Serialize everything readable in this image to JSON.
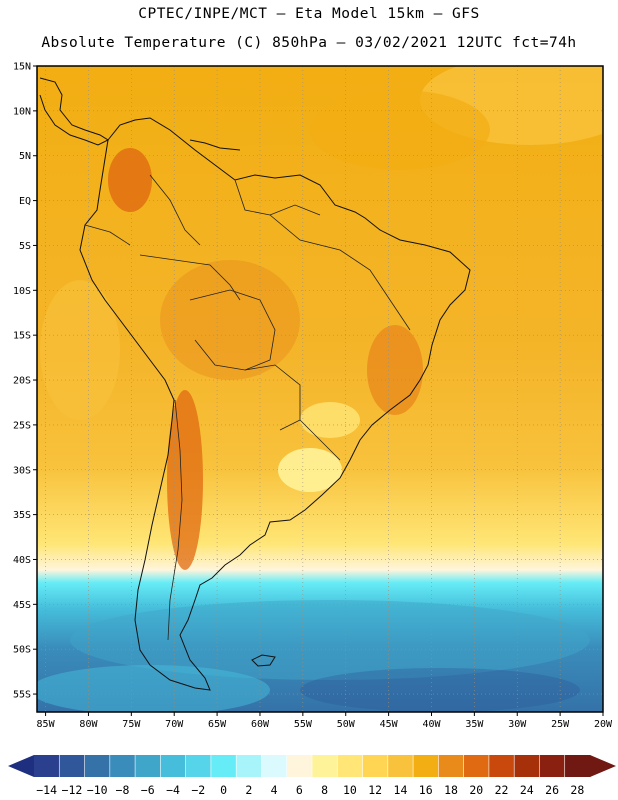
{
  "header": {
    "line1": "CPTEC/INPE/MCT —  Eta Model 15km — GFS",
    "line2": "Absolute Temperature (C) 850hPa — 03/02/2021 12UTC fct=74h"
  },
  "map": {
    "lat_ticks": [
      "15N",
      "10N",
      "5N",
      "EQ",
      "5S",
      "10S",
      "15S",
      "20S",
      "25S",
      "30S",
      "35S",
      "40S",
      "45S",
      "50S",
      "55S"
    ],
    "lon_ticks": [
      "85W",
      "80W",
      "75W",
      "70W",
      "65W",
      "60W",
      "55W",
      "50W",
      "45W",
      "40W",
      "35W",
      "30W",
      "25W",
      "20W"
    ],
    "lat_range": [
      15,
      -57
    ],
    "lon_range": [
      -86,
      -20
    ]
  },
  "colorbar": {
    "labels": [
      "-14",
      "-12",
      "-10",
      "-8",
      "-6",
      "-4",
      "-2",
      "0",
      "2",
      "4",
      "6",
      "8",
      "10",
      "12",
      "14",
      "16",
      "18",
      "20",
      "22",
      "24",
      "26",
      "28"
    ],
    "colors": [
      "#2b3f8f",
      "#2f5799",
      "#3472a8",
      "#3a8dbb",
      "#3fa6c9",
      "#46bedb",
      "#55d4ea",
      "#66ecf6",
      "#a7f5fb",
      "#dafafd",
      "#fff5dc",
      "#fff399",
      "#ffe676",
      "#ffd553",
      "#f9c23c",
      "#f2ae12",
      "#e98b1b",
      "#e06a12",
      "#c9480c",
      "#a63009",
      "#8a2110",
      "#701812"
    ],
    "low_arrow_color": "#1f2f80",
    "high_arrow_color": "#701812"
  }
}
